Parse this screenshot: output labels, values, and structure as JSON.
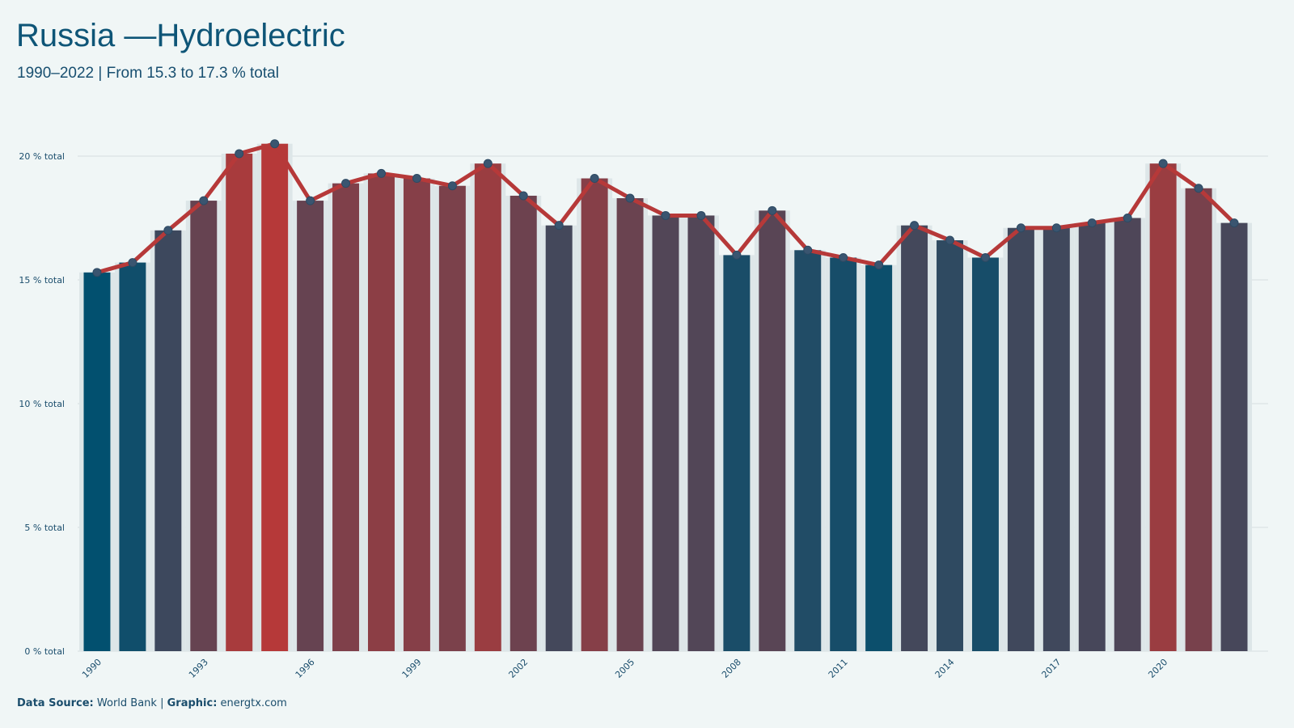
{
  "title": "Russia —Hydroelectric",
  "subtitle": "1990–2022 | From 15.3 to 17.3 % total",
  "caption": {
    "source_label": "Data Source:",
    "source_value": "World Bank",
    "separator": "|",
    "graphic_label": "Graphic:",
    "graphic_value": "energtx.com"
  },
  "colors": {
    "low": "#02506f",
    "high": "#b63939",
    "line": "#b63939",
    "marker": "#3a5570",
    "grid": "#d6dee0",
    "axis_text": "#1a4d6c"
  },
  "chart_data": {
    "type": "bar",
    "x": [
      1990,
      1991,
      1992,
      1993,
      1994,
      1995,
      1996,
      1997,
      1998,
      1999,
      2000,
      2001,
      2002,
      2003,
      2004,
      2005,
      2006,
      2007,
      2008,
      2009,
      2010,
      2011,
      2012,
      2013,
      2014,
      2015,
      2016,
      2017,
      2018,
      2019,
      2020,
      2021,
      2022
    ],
    "values": [
      15.3,
      15.7,
      17.0,
      18.2,
      20.1,
      20.5,
      18.2,
      18.9,
      19.3,
      19.1,
      18.8,
      19.7,
      18.4,
      17.2,
      19.1,
      18.3,
      17.6,
      17.6,
      16.0,
      17.8,
      16.2,
      15.9,
      15.6,
      17.2,
      16.6,
      15.9,
      17.1,
      17.1,
      17.3,
      17.5,
      19.7,
      18.7,
      17.3
    ],
    "ylim": [
      0,
      20
    ],
    "y_ticks": [
      0,
      5,
      10,
      15,
      20
    ],
    "y_tick_labels": [
      "0 % total",
      "5 % total",
      "10 % total",
      "15 % total",
      "20 % total"
    ],
    "x_tick_labels": [
      "1990",
      "1993",
      "1996",
      "1999",
      "2002",
      "2005",
      "2008",
      "2011",
      "2014",
      "2017",
      "2020"
    ],
    "overlay": "line-with-markers",
    "grid": true,
    "legend": "none"
  }
}
